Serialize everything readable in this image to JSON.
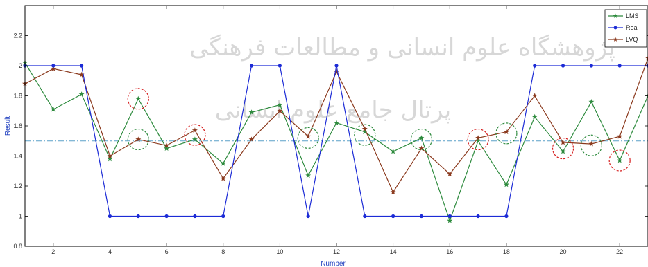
{
  "chart_data": {
    "type": "line",
    "xlabel": "Number",
    "ylabel": "Result",
    "xlim": [
      1,
      23
    ],
    "ylim": [
      0.8,
      2.4
    ],
    "x_ticks": [
      2,
      4,
      6,
      8,
      10,
      12,
      14,
      16,
      18,
      20,
      22
    ],
    "y_ticks": [
      {
        "value": 0.8,
        "label": "0.8"
      },
      {
        "value": 1.0,
        "label": "1"
      },
      {
        "value": 1.2,
        "label": "1.2"
      },
      {
        "value": 1.4,
        "label": "1.4"
      },
      {
        "value": 1.6,
        "label": "1.6"
      },
      {
        "value": 1.8,
        "label": "1.8"
      },
      {
        "value": 2.0,
        "label": "2"
      },
      {
        "value": 2.2,
        "label": "2.2"
      }
    ],
    "x": [
      1,
      2,
      3,
      4,
      5,
      6,
      7,
      8,
      9,
      10,
      11,
      12,
      13,
      14,
      15,
      16,
      17,
      18,
      19,
      20,
      21,
      22,
      23
    ],
    "threshold": 1.5,
    "legend_position": "top-right",
    "series": [
      {
        "name": "LMS",
        "color": "#2e8b3e",
        "marker": "star",
        "values": [
          2.02,
          1.71,
          1.81,
          1.38,
          1.78,
          1.45,
          1.51,
          1.35,
          1.69,
          1.74,
          1.27,
          1.62,
          1.56,
          1.43,
          1.52,
          0.97,
          1.5,
          1.21,
          1.66,
          1.43,
          1.76,
          1.37,
          1.8
        ]
      },
      {
        "name": "Real",
        "color": "#1c2bd6",
        "marker": "dot",
        "values": [
          2,
          2,
          2,
          1,
          1,
          1,
          1,
          1,
          2,
          2,
          1,
          2,
          1,
          1,
          1,
          1,
          1,
          1,
          2,
          2,
          2,
          2,
          2
        ]
      },
      {
        "name": "LVQ",
        "color": "#8b3a1e",
        "marker": "star",
        "values": [
          1.88,
          1.98,
          1.94,
          1.4,
          1.51,
          1.47,
          1.57,
          1.25,
          1.51,
          1.7,
          1.53,
          1.96,
          1.58,
          1.16,
          1.45,
          1.28,
          1.52,
          1.56,
          1.8,
          1.49,
          1.48,
          1.53,
          2.05
        ]
      }
    ],
    "circles": [
      {
        "x": 5,
        "y": 1.78,
        "color": "#d62020"
      },
      {
        "x": 5,
        "y": 1.51,
        "color": "#2e8b3e"
      },
      {
        "x": 7,
        "y": 1.54,
        "color": "#d62020"
      },
      {
        "x": 11,
        "y": 1.52,
        "color": "#2e8b3e"
      },
      {
        "x": 13,
        "y": 1.54,
        "color": "#2e8b3e"
      },
      {
        "x": 15,
        "y": 1.51,
        "color": "#2e8b3e"
      },
      {
        "x": 17,
        "y": 1.51,
        "color": "#d62020"
      },
      {
        "x": 18,
        "y": 1.55,
        "color": "#2e8b3e"
      },
      {
        "x": 20,
        "y": 1.45,
        "color": "#d62020"
      },
      {
        "x": 21,
        "y": 1.47,
        "color": "#2e8b3e"
      },
      {
        "x": 22,
        "y": 1.37,
        "color": "#d62020"
      }
    ]
  },
  "watermark": {
    "line1": "پژوهشگاه علوم انسانی و مطالعات فرهنگی",
    "line2": "پرتال جامع علوم انسانی"
  }
}
